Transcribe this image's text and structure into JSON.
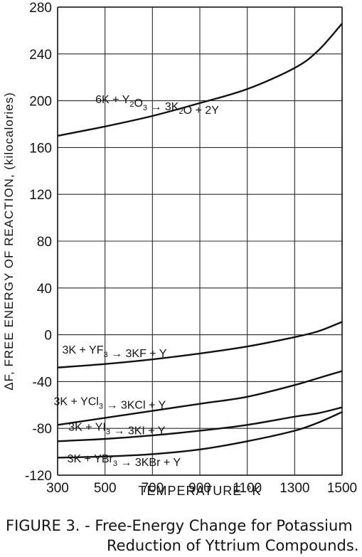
{
  "chart_data": {
    "type": "line",
    "title": "",
    "xlabel": "TEMPERATURE °K",
    "ylabel": "ΔF, FREE ENERGY OF REACTION, (kilocalories)",
    "xlim": [
      300,
      1500
    ],
    "ylim": [
      -120,
      280
    ],
    "x_ticks": [
      "300",
      "500",
      "700",
      "900",
      "1100",
      "1300",
      "1500"
    ],
    "y_ticks": [
      "280",
      "240",
      "200",
      "160",
      "120",
      "80",
      "40",
      "0",
      "-40",
      "-80",
      "-120"
    ],
    "grid": true,
    "x": [
      300,
      500,
      700,
      900,
      1100,
      1300,
      1400,
      1500
    ],
    "series": [
      {
        "name": "6K + Y₂O₃ → 3K₂O + 2Y",
        "values": [
          170,
          178,
          187,
          198,
          210,
          228,
          243,
          266
        ]
      },
      {
        "name": "3K + YF₃ → 3KF + Y",
        "values": [
          -28,
          -25,
          -21,
          -16,
          -10,
          -2,
          3,
          11
        ]
      },
      {
        "name": "3K + YCl₃ → 3KCl + Y",
        "values": [
          -77,
          -71,
          -65,
          -59,
          -53,
          -43,
          -37,
          -31
        ]
      },
      {
        "name": "3K + YI₃ → 3KI + Y",
        "values": [
          -91,
          -89,
          -86,
          -82,
          -77,
          -70,
          -67,
          -62
        ]
      },
      {
        "name": "3K + YBr₃ → 3KBr + Y",
        "values": [
          -105,
          -104,
          -102,
          -98,
          -91,
          -82,
          -75,
          -66
        ]
      }
    ],
    "line_labels": [
      {
        "lhs": "6K + Y",
        "sub": "2",
        "mid": "O",
        "sub2": "3",
        "rhs_a": "3K",
        "rhs_sub": "2",
        "rhs_b": "O + 2Y",
        "at_x": 720,
        "at_y": 198
      },
      {
        "lhs": "3K + YF",
        "sub": "3",
        "rhs": "3KF + Y",
        "at_x": 540,
        "at_y": -16
      },
      {
        "lhs": "3K + YCl",
        "sub": "3",
        "rhs": "3KCl + Y",
        "at_x": 520,
        "at_y": -60
      },
      {
        "lhs": "3K + YI",
        "sub": "3",
        "rhs": "3KI + Y",
        "at_x": 550,
        "at_y": -82
      },
      {
        "lhs": "3K + YBr",
        "sub": "3",
        "rhs": "3KBr + Y",
        "at_x": 580,
        "at_y": -109
      }
    ]
  },
  "caption": {
    "line1": "FIGURE 3. - Free-Energy Change for Potassium",
    "line2": "Reduction of Yttrium Compounds."
  }
}
